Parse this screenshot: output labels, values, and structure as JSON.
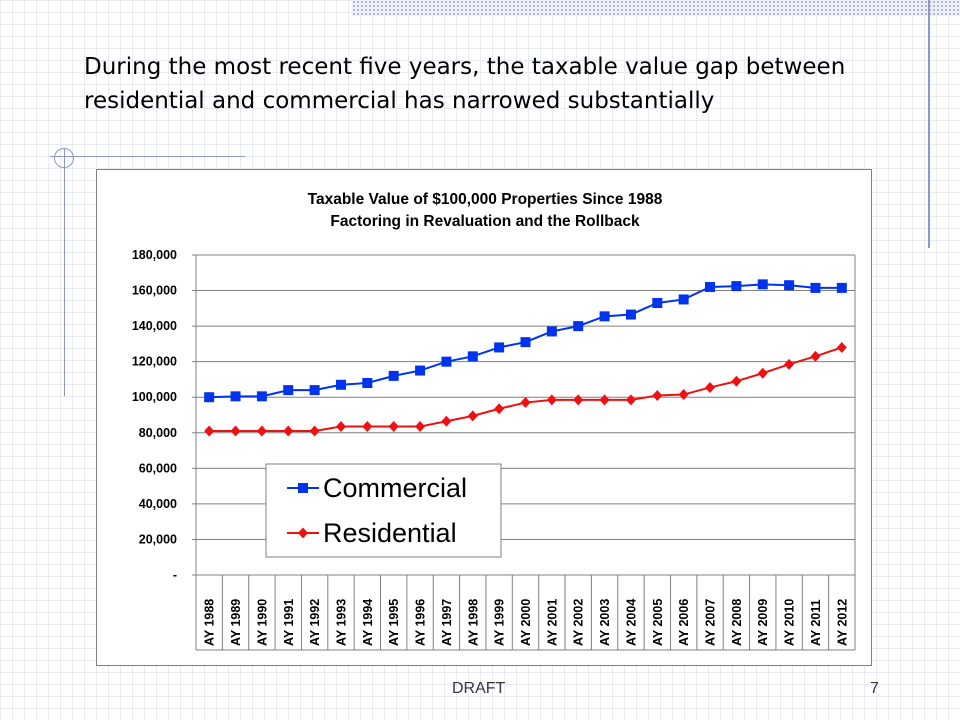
{
  "slide": {
    "title": "During the most recent five years, the taxable value gap between residential and commercial has narrowed substantially",
    "footer": "DRAFT",
    "page_number": "7"
  },
  "colors": {
    "commercial": "#0033ee",
    "residential": "#ee1111",
    "accent_lines": "#8d97c8"
  },
  "chart_data": {
    "type": "line",
    "title": "Taxable Value of $100,000 Properties Since 1988",
    "subtitle": "Factoring in Revaluation and the Rollback",
    "xlabel": "",
    "ylabel": "",
    "ylim": [
      0,
      180000
    ],
    "yticks": [
      "-",
      "20,000",
      "40,000",
      "60,000",
      "80,000",
      "100,000",
      "120,000",
      "140,000",
      "160,000",
      "180,000"
    ],
    "grid": "horizontal",
    "legend_placement": "bottom-left",
    "categories": [
      "AY 1988",
      "AY 1989",
      "AY 1990",
      "AY 1991",
      "AY 1992",
      "AY 1993",
      "AY 1994",
      "AY 1995",
      "AY 1996",
      "AY 1997",
      "AY 1998",
      "AY 1999",
      "AY 2000",
      "AY 2001",
      "AY 2002",
      "AY 2003",
      "AY 2004",
      "AY 2005",
      "AY 2006",
      "AY 2007",
      "AY 2008",
      "AY 2009",
      "AY 2010",
      "AY 2011",
      "AY 2012"
    ],
    "series": [
      {
        "name": "Commercial",
        "marker": "square",
        "values": [
          100000,
          100500,
          100500,
          104000,
          104000,
          107000,
          108000,
          112000,
          115000,
          120000,
          123000,
          128000,
          131000,
          137000,
          140000,
          145500,
          146500,
          153000,
          155000,
          162000,
          162500,
          163500,
          163000,
          161500,
          161500
        ]
      },
      {
        "name": "Residential",
        "marker": "diamond",
        "values": [
          81000,
          81000,
          81000,
          81000,
          81000,
          83500,
          83500,
          83500,
          83500,
          86500,
          89500,
          93500,
          97000,
          98500,
          98500,
          98500,
          98500,
          101000,
          101500,
          105500,
          109000,
          113500,
          118500,
          123000,
          128000
        ]
      }
    ]
  }
}
